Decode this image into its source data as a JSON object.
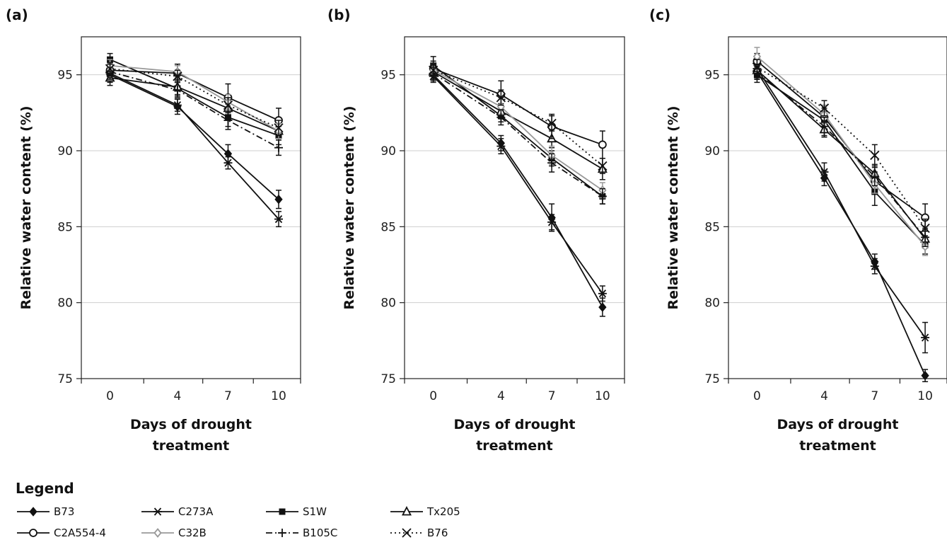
{
  "chart_data": {
    "type": "line",
    "ylabel": "Relative water content (%)",
    "xlabel": "Days of drought treatment",
    "x": [
      0,
      4,
      7,
      10
    ],
    "ylim": [
      75,
      97.5
    ],
    "yticks": [
      75,
      80,
      85,
      90,
      95
    ],
    "grid": "horizontal",
    "legend_title": "Legend",
    "legend_placement": "bottom",
    "series_styles": [
      {
        "name": "B73",
        "marker": "diamond-filled",
        "dash": "solid",
        "color": "#111111"
      },
      {
        "name": "C273A",
        "marker": "asterisk",
        "dash": "solid",
        "color": "#111111"
      },
      {
        "name": "S1W",
        "marker": "square-filled",
        "dash": "solid",
        "color": "#111111"
      },
      {
        "name": "Tx205",
        "marker": "triangle-open",
        "dash": "solid",
        "color": "#111111"
      },
      {
        "name": "C2A554-4",
        "marker": "circle-open",
        "dash": "solid",
        "color": "#111111"
      },
      {
        "name": "C32B",
        "marker": "diamond-open",
        "dash": "solid",
        "color": "#999999"
      },
      {
        "name": "B105C",
        "marker": "plus",
        "dash": "dashdot",
        "color": "#111111"
      },
      {
        "name": "B76",
        "marker": "x",
        "dash": "dotted",
        "color": "#111111"
      }
    ],
    "panels": [
      {
        "label": "(a)",
        "series": [
          {
            "name": "B73",
            "values": [
              95.0,
              92.9,
              89.8,
              86.8
            ],
            "errors": [
              0.5,
              0.5,
              0.6,
              0.6
            ]
          },
          {
            "name": "C273A",
            "values": [
              95.1,
              93.0,
              89.2,
              85.5
            ],
            "errors": [
              0.5,
              0.4,
              0.4,
              0.5
            ]
          },
          {
            "name": "S1W",
            "values": [
              96.0,
              94.1,
              92.2,
              91.0
            ],
            "errors": [
              0.4,
              0.5,
              0.6,
              0.6
            ]
          },
          {
            "name": "Tx205",
            "values": [
              94.8,
              94.2,
              92.8,
              91.3
            ],
            "errors": [
              0.5,
              0.5,
              0.5,
              0.5
            ]
          },
          {
            "name": "C2A554-4",
            "values": [
              95.3,
              95.1,
              93.5,
              92.0
            ],
            "errors": [
              0.5,
              0.6,
              0.9,
              0.8
            ]
          },
          {
            "name": "C32B",
            "values": [
              95.6,
              95.2,
              93.2,
              91.3
            ],
            "errors": [
              0.4,
              0.4,
              0.5,
              0.5
            ]
          },
          {
            "name": "B105C",
            "values": [
              95.2,
              94.0,
              92.0,
              90.2
            ],
            "errors": [
              0.5,
              0.5,
              0.6,
              0.5
            ]
          },
          {
            "name": "B76",
            "values": [
              95.4,
              94.9,
              93.0,
              91.5
            ],
            "errors": [
              0.4,
              0.4,
              0.5,
              0.5
            ]
          }
        ]
      },
      {
        "label": "(b)",
        "series": [
          {
            "name": "B73",
            "values": [
              95.0,
              90.5,
              85.6,
              79.7
            ],
            "errors": [
              0.4,
              0.5,
              0.9,
              0.6
            ]
          },
          {
            "name": "C273A",
            "values": [
              94.9,
              90.3,
              85.3,
              80.6
            ],
            "errors": [
              0.4,
              0.5,
              0.5,
              0.5
            ]
          },
          {
            "name": "S1W",
            "values": [
              95.6,
              92.3,
              89.5,
              87.0
            ],
            "errors": [
              0.6,
              0.4,
              0.5,
              0.5
            ]
          },
          {
            "name": "Tx205",
            "values": [
              95.2,
              92.6,
              90.8,
              88.8
            ],
            "errors": [
              0.5,
              0.5,
              0.6,
              0.7
            ]
          },
          {
            "name": "C2A554-4",
            "values": [
              95.4,
              93.7,
              91.6,
              90.4
            ],
            "errors": [
              0.5,
              0.9,
              0.8,
              0.9
            ]
          },
          {
            "name": "C32B",
            "values": [
              95.3,
              92.9,
              89.7,
              87.4
            ],
            "errors": [
              0.4,
              0.5,
              0.6,
              0.5
            ]
          },
          {
            "name": "B105C",
            "values": [
              95.1,
              92.2,
              89.2,
              87.0
            ],
            "errors": [
              0.4,
              0.5,
              0.6,
              0.5
            ]
          },
          {
            "name": "B76",
            "values": [
              95.3,
              93.5,
              91.8,
              89.0
            ],
            "errors": [
              0.4,
              0.5,
              0.5,
              0.5
            ]
          }
        ]
      },
      {
        "label": "(c)",
        "series": [
          {
            "name": "B73",
            "values": [
              95.2,
              88.2,
              82.7,
              75.2
            ],
            "errors": [
              0.5,
              0.5,
              0.5,
              0.4
            ]
          },
          {
            "name": "C273A",
            "values": [
              95.4,
              88.6,
              82.4,
              77.7
            ],
            "errors": [
              0.5,
              0.6,
              0.5,
              1.0
            ]
          },
          {
            "name": "S1W",
            "values": [
              95.0,
              92.0,
              87.3,
              83.8
            ],
            "errors": [
              0.5,
              0.6,
              0.9,
              0.6
            ]
          },
          {
            "name": "Tx205",
            "values": [
              95.3,
              91.4,
              88.5,
              84.2
            ],
            "errors": [
              0.5,
              0.5,
              0.6,
              0.6
            ]
          },
          {
            "name": "C2A554-4",
            "values": [
              95.9,
              92.2,
              88.0,
              85.6
            ],
            "errors": [
              0.5,
              0.6,
              0.6,
              0.9
            ]
          },
          {
            "name": "C32B",
            "values": [
              96.2,
              92.4,
              87.8,
              83.7
            ],
            "errors": [
              0.6,
              0.6,
              0.6,
              0.6
            ]
          },
          {
            "name": "B105C",
            "values": [
              95.2,
              91.6,
              88.3,
              84.3
            ],
            "errors": [
              0.5,
              0.6,
              0.6,
              0.6
            ]
          },
          {
            "name": "B76",
            "values": [
              95.5,
              92.8,
              89.7,
              84.9
            ],
            "errors": [
              0.5,
              0.5,
              0.7,
              0.6
            ]
          }
        ]
      }
    ]
  }
}
